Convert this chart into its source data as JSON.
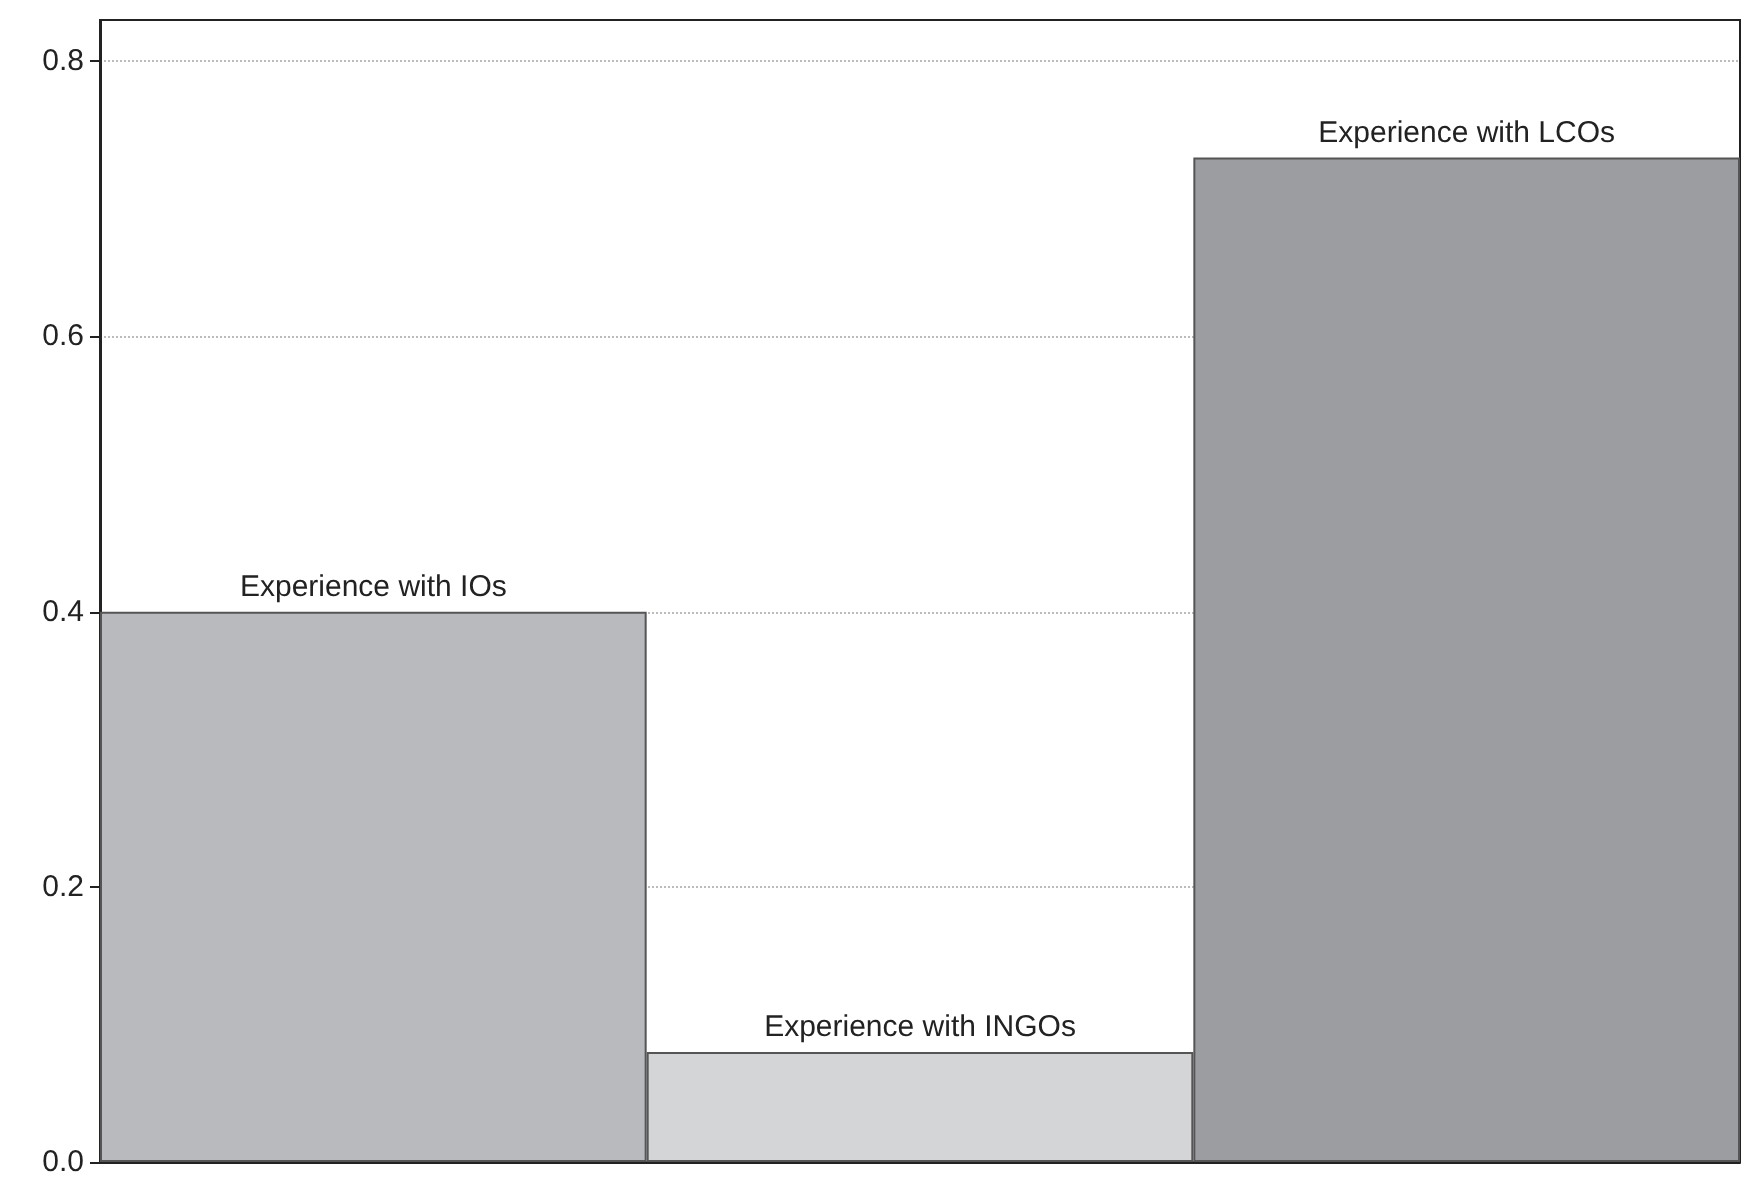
{
  "chart_data": {
    "type": "bar",
    "categories": [
      "Experience with IOs",
      "Experience with INGOs",
      "Experience with LCOs"
    ],
    "values": [
      0.4,
      0.08,
      0.73
    ],
    "colors": [
      "#b9babe",
      "#d4d5d7",
      "#9c9da1"
    ],
    "ylim": [
      0,
      0.83
    ],
    "yticks": [
      {
        "value": 0,
        "label": "0.0"
      },
      0.2,
      0.4,
      0.6,
      0.8
    ],
    "grid": "y"
  }
}
